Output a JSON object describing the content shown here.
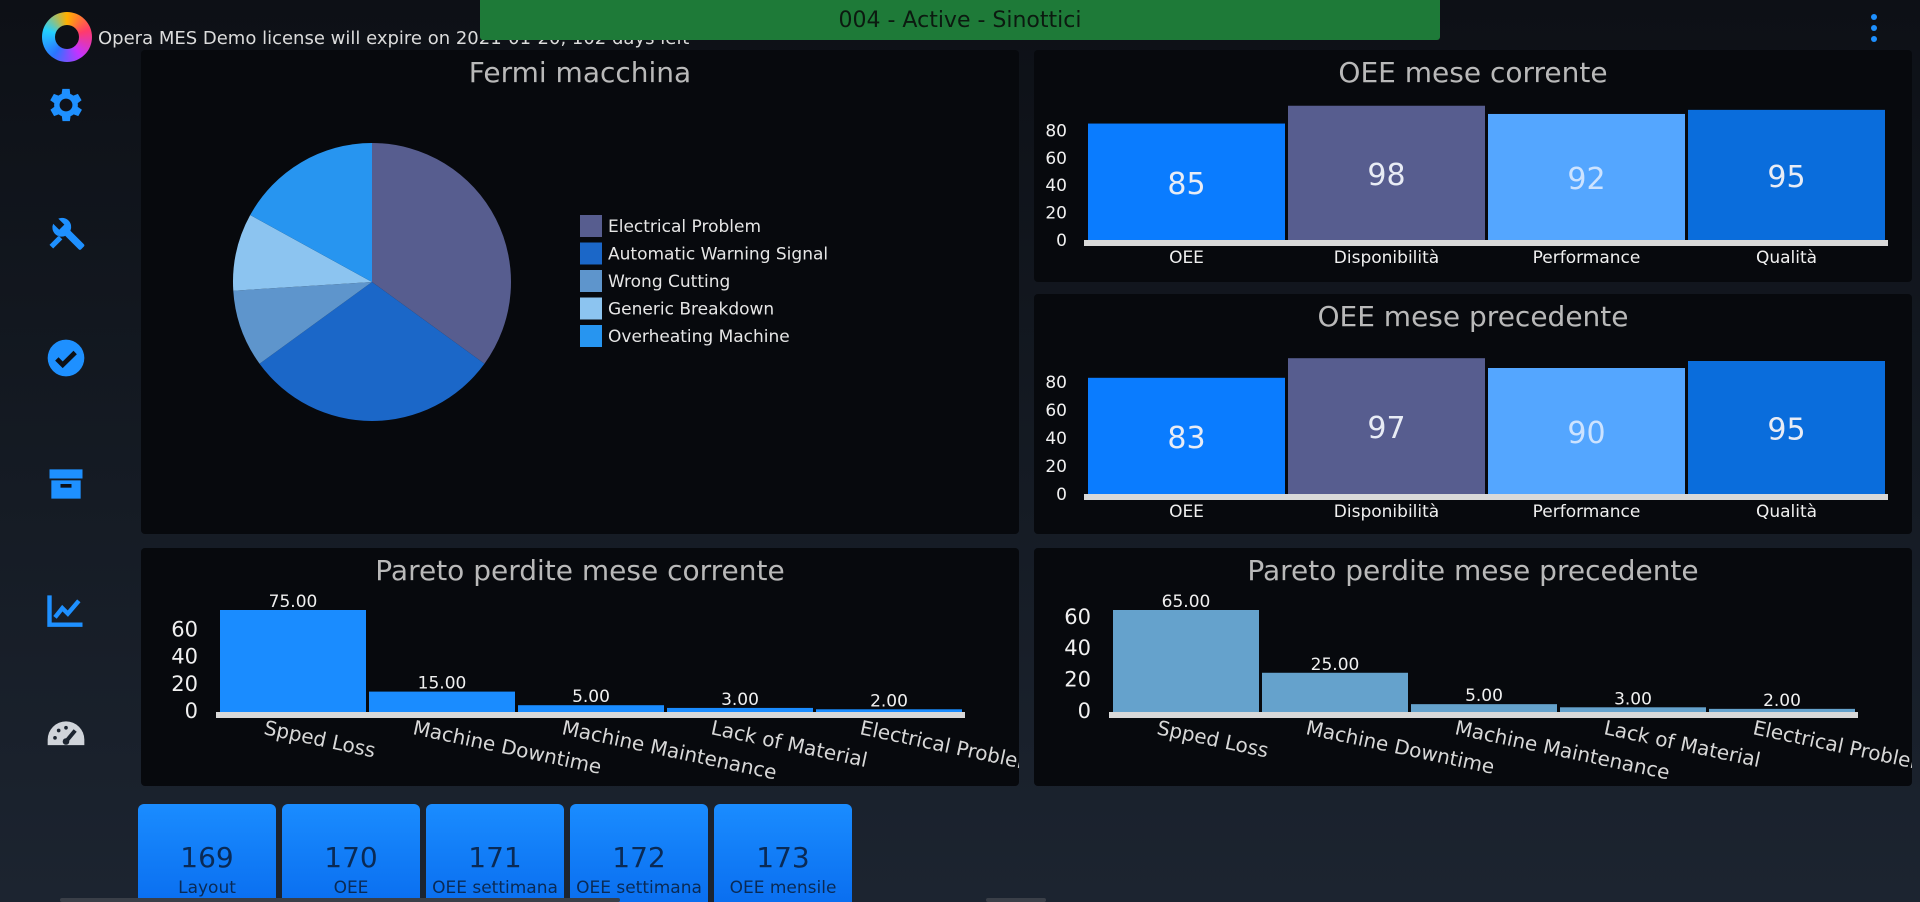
{
  "header": {
    "license_text": "Opera MES Demo license will expire on 2021-01-20, 102 days left",
    "status_title": "004 - Active - Sinottici",
    "menu_icon": "kebab-menu-icon"
  },
  "sidebar": {
    "icons": [
      "gear-icon",
      "tools-icon",
      "check-circle-icon",
      "box-icon",
      "chart-trend-icon",
      "gauge-icon"
    ],
    "color": "#1e90ff"
  },
  "panels": {
    "fermi": {
      "title": "Fermi macchina"
    },
    "oee_corrente": {
      "title": "OEE mese corrente"
    },
    "oee_precedente": {
      "title": "OEE mese precedente"
    },
    "pareto_corrente": {
      "title": "Pareto perdite mese corrente"
    },
    "pareto_precedente": {
      "title": "Pareto perdite mese precedente"
    }
  },
  "chart_data": [
    {
      "type": "pie",
      "title": "Fermi macchina",
      "legend_position": "right",
      "slices": [
        {
          "label": "Electrical Problem",
          "value": 35,
          "color": "#575d8f"
        },
        {
          "label": "Automatic Warning Signal",
          "value": 30,
          "color": "#1b67c8"
        },
        {
          "label": "Wrong Cutting",
          "value": 9,
          "color": "#5e95cc"
        },
        {
          "label": "Generic Breakdown",
          "value": 9,
          "color": "#8cc4f0"
        },
        {
          "label": "Overheating Machine",
          "value": 17,
          "color": "#2795f0"
        }
      ]
    },
    {
      "type": "bar",
      "title": "OEE mese corrente",
      "categories": [
        "OEE",
        "Disponibilità",
        "Performance",
        "Qualità"
      ],
      "values": [
        85,
        98,
        92,
        95
      ],
      "colors": [
        "#0a7cff",
        "#575d8f",
        "#54a6ff",
        "#0a6ddc"
      ],
      "yticks": [
        0,
        20,
        40,
        60,
        80
      ],
      "ylim": [
        0,
        100
      ]
    },
    {
      "type": "bar",
      "title": "OEE mese precedente",
      "categories": [
        "OEE",
        "Disponibilità",
        "Performance",
        "Qualità"
      ],
      "values": [
        83,
        97,
        90,
        95
      ],
      "colors": [
        "#0a7cff",
        "#575d8f",
        "#54a6ff",
        "#0a6ddc"
      ],
      "yticks": [
        0,
        20,
        40,
        60,
        80
      ],
      "ylim": [
        0,
        100
      ]
    },
    {
      "type": "bar",
      "title": "Pareto perdite mese corrente",
      "categories": [
        "Spped Loss",
        "Machine Downtime",
        "Machine Maintenance",
        "Lack of Material",
        "Electrical Problems"
      ],
      "values": [
        75,
        15,
        5,
        3,
        2
      ],
      "value_labels": [
        "75.00",
        "15.00",
        "5.00",
        "3.00",
        "2.00"
      ],
      "color": "#1a8cff",
      "yticks": [
        0,
        20,
        40,
        60
      ],
      "ylim": [
        0,
        75
      ]
    },
    {
      "type": "bar",
      "title": "Pareto perdite mese precedente",
      "categories": [
        "Spped Loss",
        "Machine Downtime",
        "Machine Maintenance",
        "Lack of Material",
        "Electrical Problems"
      ],
      "values": [
        65,
        25,
        5,
        3,
        2
      ],
      "value_labels": [
        "65.00",
        "25.00",
        "5.00",
        "3.00",
        "2.00"
      ],
      "color": "#65a2cc",
      "yticks": [
        0,
        20,
        40,
        60
      ],
      "ylim": [
        0,
        65
      ]
    }
  ],
  "tiles": [
    {
      "number": "169",
      "label": "Layout"
    },
    {
      "number": "170",
      "label": "OEE"
    },
    {
      "number": "171",
      "label": "OEE settimana"
    },
    {
      "number": "172",
      "label": "OEE settimana"
    },
    {
      "number": "173",
      "label": "OEE mensile"
    }
  ]
}
